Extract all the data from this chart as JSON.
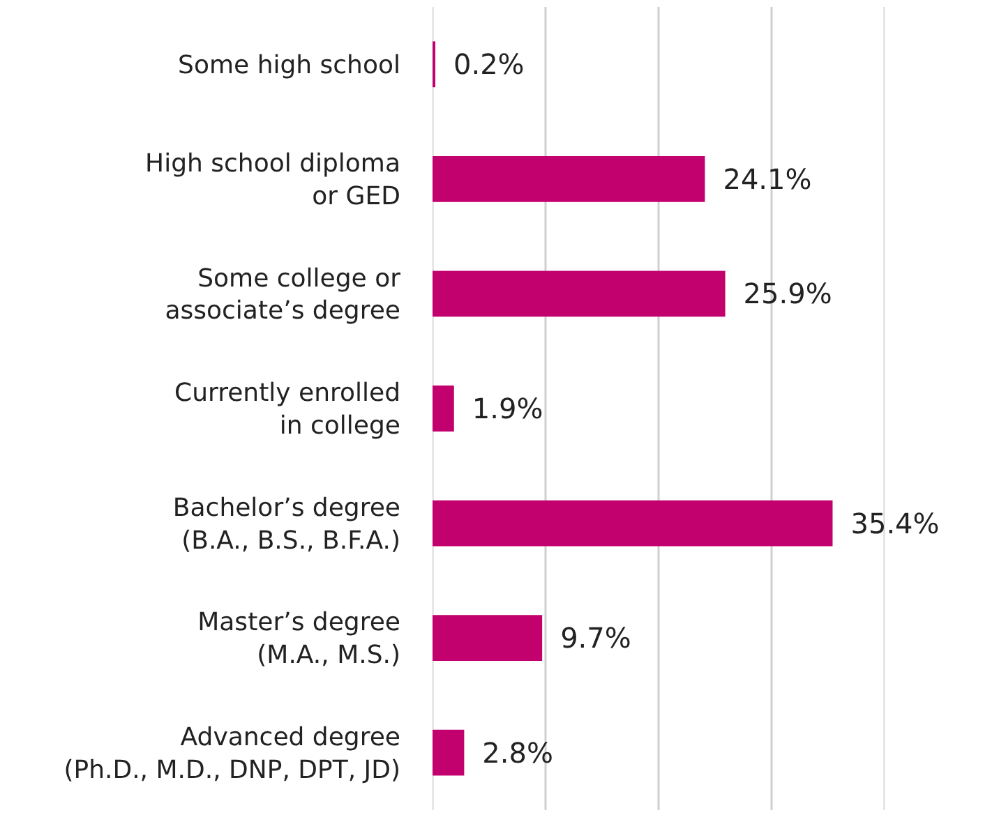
{
  "chart_data": {
    "type": "bar",
    "orientation": "horizontal",
    "categories": [
      "Some high school",
      "High school diploma\nor GED",
      "Some college or\nassociate’s degree",
      "Currently enrolled\nin college",
      "Bachelor’s degree\n(B.A., B.S., B.F.A.)",
      "Master’s degree\n(M.A., M.S.)",
      "Advanced degree\n(Ph.D., M.D., DNP, DPT, JD)"
    ],
    "values": [
      0.2,
      24.1,
      25.9,
      1.9,
      35.4,
      9.7,
      2.8
    ],
    "value_labels": [
      "0.2%",
      "24.1%",
      "25.9%",
      "1.9%",
      "35.4%",
      "9.7%",
      "2.8%"
    ],
    "color": "#c2006e",
    "xlim": [
      0,
      40
    ],
    "xticks": [
      {
        "value": 0,
        "label": null
      },
      {
        "value": 10,
        "label": null
      },
      {
        "value": 20,
        "label": null
      },
      {
        "value": 30,
        "label": null
      },
      {
        "value": 40,
        "label": null
      }
    ],
    "grid": "x",
    "tick_labels": "y"
  }
}
